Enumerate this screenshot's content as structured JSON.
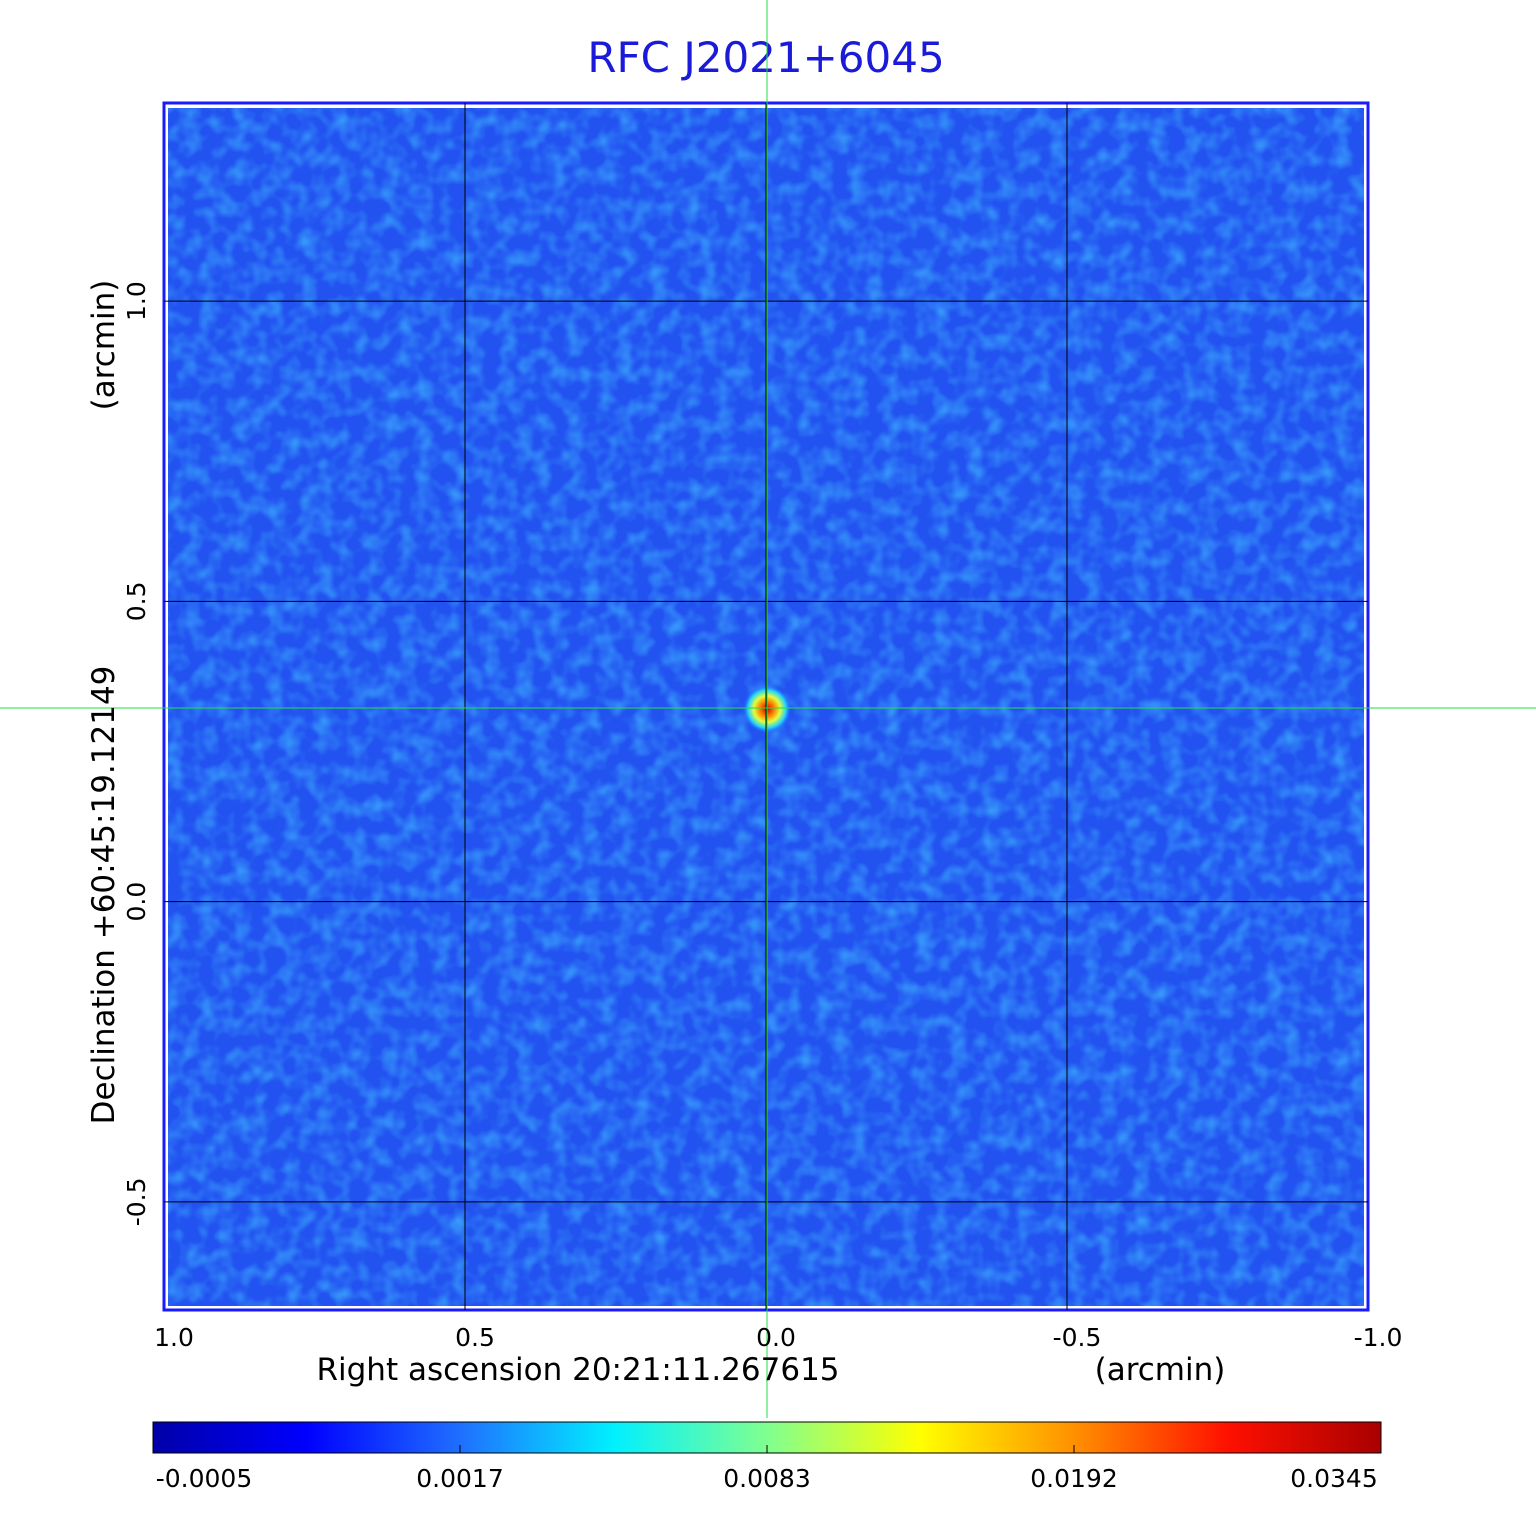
{
  "chart_data": {
    "type": "image",
    "title": "RFC J2021+6045",
    "xlabel": "Right ascension  20:21:11.267615",
    "xunit": "(arcmin)",
    "ylabel": "Declination  +60:45:19.12149",
    "yunit": "(arcmin)",
    "xlim": [
      1.0,
      -1.0
    ],
    "ylim": [
      -0.68,
      1.33
    ],
    "xticks": [
      {
        "value": 1,
        "label": "1.0"
      },
      0.5,
      {
        "value": 0,
        "label": "0.0"
      },
      -0.5,
      {
        "value": -1,
        "label": "-1.0"
      }
    ],
    "yticks": [
      -0.5,
      {
        "value": 0,
        "label": "0.0"
      },
      0.5,
      {
        "value": 1,
        "label": "1.0"
      }
    ],
    "grid": true,
    "colorbar": {
      "ticks": [
        -0.0005,
        0.0017,
        0.0083,
        0.0192,
        0.0345
      ],
      "colors": [
        "#0000a8",
        "#0000ff",
        "#1f6fff",
        "#00f0ff",
        "#80ff90",
        "#ffff00",
        "#ff9000",
        "#ff1000",
        "#a80000"
      ]
    }
  }
}
